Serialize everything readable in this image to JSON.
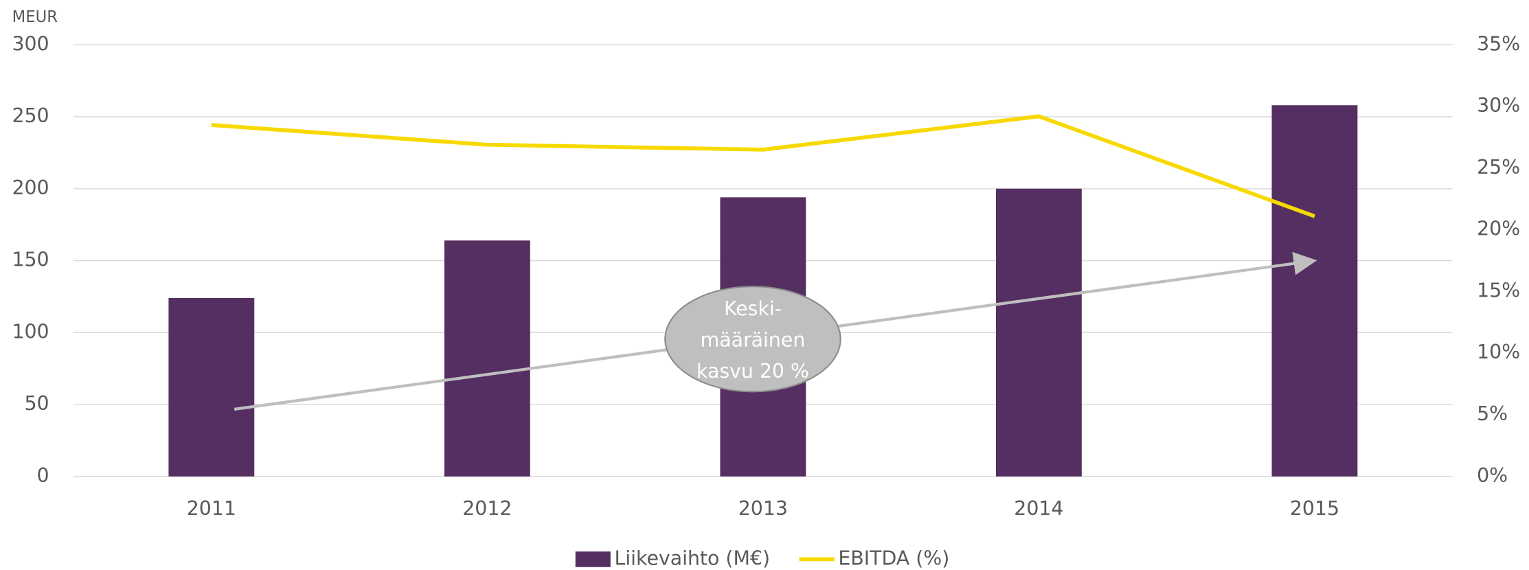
{
  "chart_data": {
    "type": "bar-line",
    "y_label": "MEUR",
    "categories": [
      "2011",
      "2012",
      "2013",
      "2014",
      "2015"
    ],
    "series": [
      {
        "name": "Liikevaihto (M€)",
        "color": "#552f62",
        "type": "bar",
        "values": [
          124,
          164,
          194,
          200,
          258
        ]
      },
      {
        "name": "EBITDA (%)",
        "color": "#f7d900",
        "type": "line",
        "axis": "y2",
        "values": [
          28.5,
          26.9,
          26.5,
          29.2,
          21.1
        ]
      }
    ],
    "ylim": [
      0,
      300
    ],
    "yticks": [
      0,
      50,
      100,
      150,
      200,
      250,
      300
    ],
    "y2lim": [
      0,
      35
    ],
    "y2ticks": [
      {
        "value": 0,
        "label": "0%"
      },
      {
        "value": 5,
        "label": "5%"
      },
      {
        "value": 10,
        "label": "10%"
      },
      {
        "value": 15,
        "label": "15%"
      },
      {
        "value": 20,
        "label": "20%"
      },
      {
        "value": 25,
        "label": "25%"
      },
      {
        "value": 30,
        "label": "30%"
      },
      {
        "value": 35,
        "label": "35%"
      }
    ],
    "annotation": [
      "Keski-",
      "määräinen",
      "kasvu 20 %"
    ],
    "grid": true,
    "legend": "bottom"
  }
}
